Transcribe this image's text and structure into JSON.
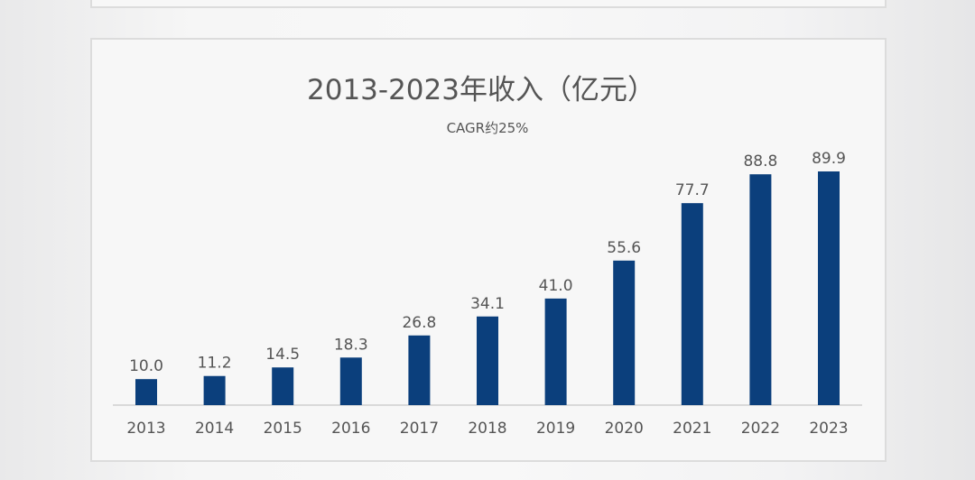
{
  "chart_data": {
    "type": "bar",
    "title": "2013-2023年收入（亿元）",
    "subtitle": "CAGR约25%",
    "categories": [
      "2013",
      "2014",
      "2015",
      "2016",
      "2017",
      "2018",
      "2019",
      "2020",
      "2021",
      "2022",
      "2023"
    ],
    "values": [
      10.0,
      11.2,
      14.5,
      18.3,
      26.8,
      34.1,
      41.0,
      55.6,
      77.7,
      88.8,
      89.9
    ],
    "xlabel": "",
    "ylabel": "",
    "ylim": [
      0,
      90
    ],
    "grid": false,
    "bar_color": "#0b3f7c",
    "text_color": "#555555"
  }
}
